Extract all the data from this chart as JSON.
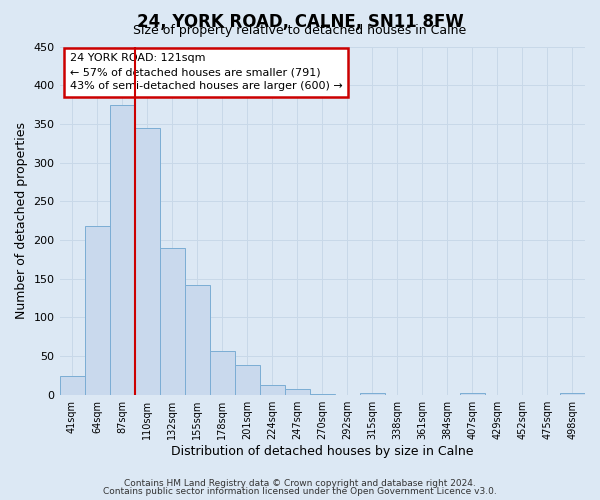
{
  "title": "24, YORK ROAD, CALNE, SN11 8FW",
  "subtitle": "Size of property relative to detached houses in Calne",
  "xlabel": "Distribution of detached houses by size in Calne",
  "ylabel": "Number of detached properties",
  "bar_labels": [
    "41sqm",
    "64sqm",
    "87sqm",
    "110sqm",
    "132sqm",
    "155sqm",
    "178sqm",
    "201sqm",
    "224sqm",
    "247sqm",
    "270sqm",
    "292sqm",
    "315sqm",
    "338sqm",
    "361sqm",
    "384sqm",
    "407sqm",
    "429sqm",
    "452sqm",
    "475sqm",
    "498sqm"
  ],
  "bar_values": [
    24,
    218,
    375,
    345,
    190,
    142,
    56,
    39,
    13,
    7,
    1,
    0,
    2,
    0,
    0,
    0,
    2,
    0,
    0,
    0,
    2
  ],
  "bar_color": "#c9d9ed",
  "bar_edge_color": "#7badd4",
  "ylim": [
    0,
    450
  ],
  "yticks": [
    0,
    50,
    100,
    150,
    200,
    250,
    300,
    350,
    400,
    450
  ],
  "grid_color": "#c8d8e8",
  "background_color": "#dce8f4",
  "vline_color": "#cc0000",
  "vline_x_index": 3,
  "annotation_title": "24 YORK ROAD: 121sqm",
  "annotation_line1": "← 57% of detached houses are smaller (791)",
  "annotation_line2": "43% of semi-detached houses are larger (600) →",
  "annotation_box_color": "#ffffff",
  "annotation_box_edge": "#cc0000",
  "footer1": "Contains HM Land Registry data © Crown copyright and database right 2024.",
  "footer2": "Contains public sector information licensed under the Open Government Licence v3.0."
}
